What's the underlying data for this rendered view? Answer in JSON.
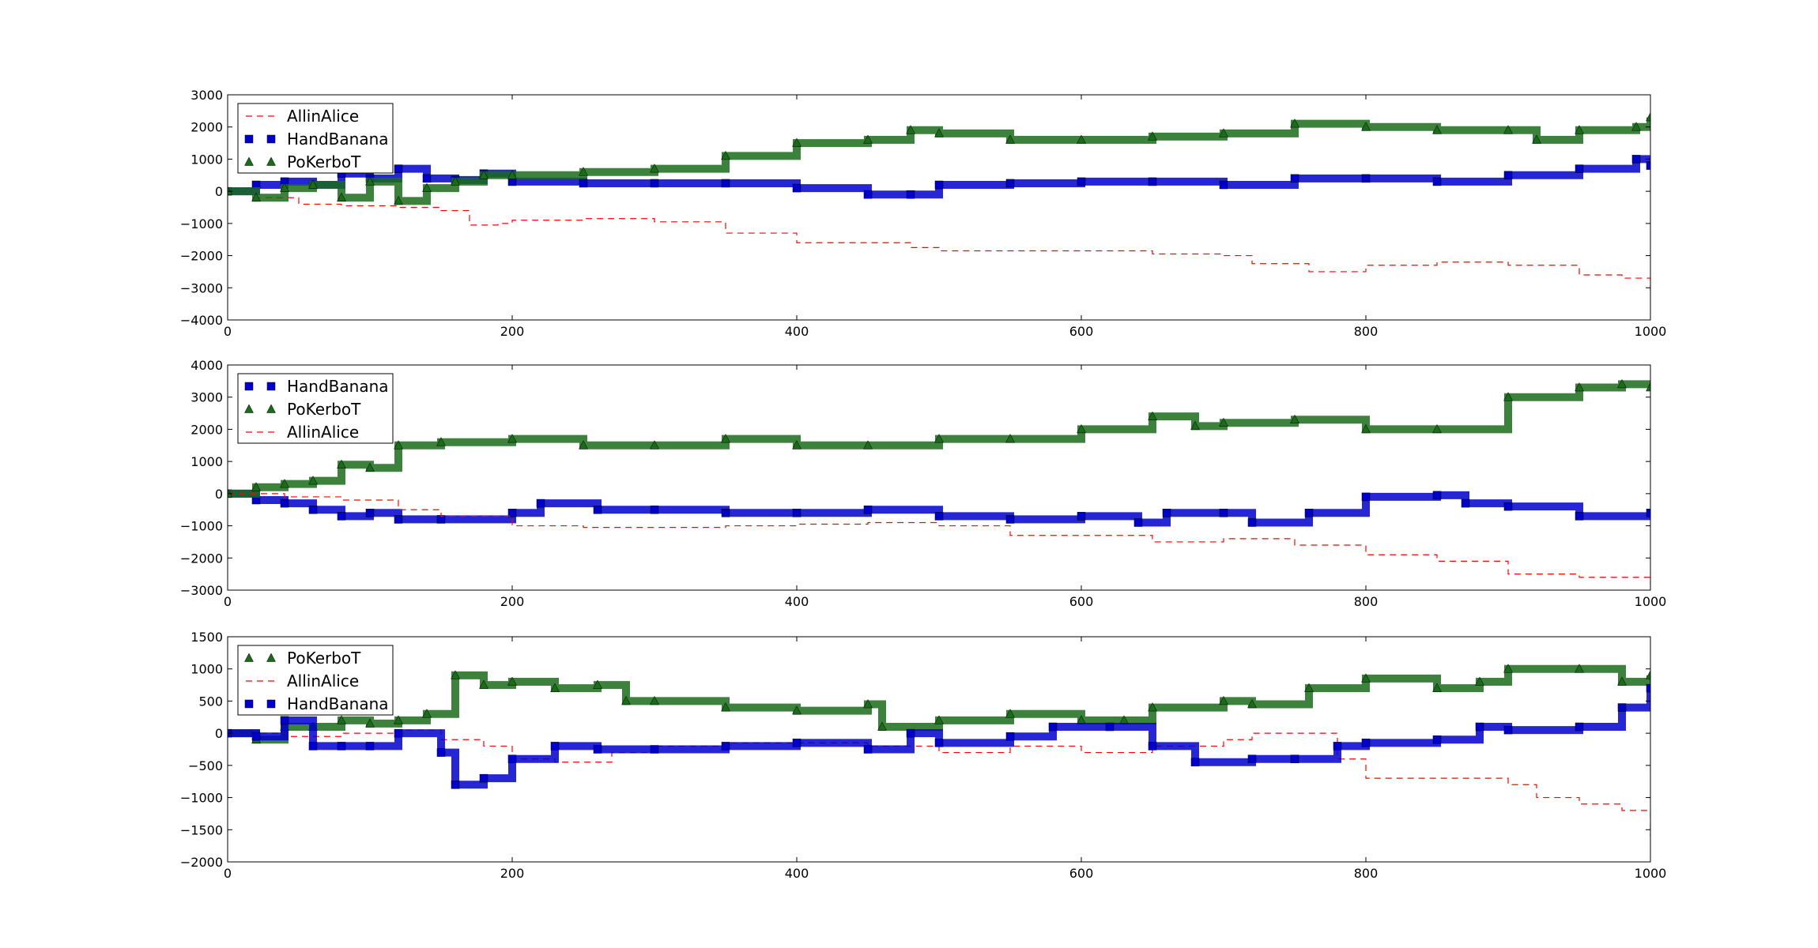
{
  "chart_data": [
    {
      "type": "line",
      "xlim": [
        0,
        1000
      ],
      "ylim": [
        -4000,
        3000
      ],
      "x_ticks": [
        0,
        200,
        400,
        600,
        800,
        1000
      ],
      "y_ticks": [
        -4000,
        -3000,
        -2000,
        -1000,
        0,
        1000,
        2000,
        3000
      ],
      "legend_position": "top-left",
      "grid": false,
      "series": [
        {
          "name": "AllinAlice",
          "marker": "dash",
          "color": "#ff0000",
          "x": [
            0,
            20,
            50,
            80,
            120,
            150,
            170,
            190,
            200,
            250,
            300,
            350,
            400,
            450,
            480,
            500,
            550,
            600,
            650,
            700,
            720,
            760,
            800,
            850,
            900,
            950,
            980,
            1000
          ],
          "y": [
            0,
            -200,
            -400,
            -450,
            -500,
            -600,
            -1050,
            -1000,
            -900,
            -850,
            -950,
            -1300,
            -1600,
            -1600,
            -1750,
            -1850,
            -1850,
            -1850,
            -1950,
            -2000,
            -2250,
            -2500,
            -2300,
            -2200,
            -2300,
            -2600,
            -2700,
            -3100
          ]
        },
        {
          "name": "HandBanana",
          "marker": "square",
          "color": "#0000cc",
          "x": [
            0,
            20,
            40,
            60,
            80,
            100,
            120,
            140,
            160,
            180,
            200,
            250,
            300,
            350,
            400,
            450,
            480,
            500,
            550,
            600,
            650,
            700,
            750,
            800,
            850,
            900,
            950,
            990,
            1000
          ],
          "y": [
            0,
            200,
            300,
            200,
            550,
            400,
            700,
            400,
            350,
            550,
            300,
            250,
            250,
            250,
            100,
            -100,
            -100,
            200,
            250,
            300,
            300,
            200,
            400,
            400,
            300,
            500,
            700,
            1000,
            800
          ]
        },
        {
          "name": "PoKerboT",
          "marker": "triangle",
          "color": "#1a6b1a",
          "x": [
            0,
            20,
            40,
            60,
            80,
            100,
            120,
            140,
            160,
            180,
            200,
            250,
            300,
            350,
            400,
            450,
            480,
            500,
            550,
            600,
            650,
            700,
            750,
            800,
            850,
            900,
            920,
            950,
            990,
            1000
          ],
          "y": [
            0,
            -200,
            100,
            200,
            -200,
            300,
            -300,
            100,
            300,
            500,
            500,
            600,
            700,
            1100,
            1500,
            1600,
            1900,
            1800,
            1600,
            1600,
            1700,
            1800,
            2100,
            2000,
            1900,
            1900,
            1600,
            1900,
            2000,
            2300
          ]
        }
      ]
    },
    {
      "type": "line",
      "xlim": [
        0,
        1000
      ],
      "ylim": [
        -3000,
        4000
      ],
      "x_ticks": [
        0,
        200,
        400,
        600,
        800,
        1000
      ],
      "y_ticks": [
        -3000,
        -2000,
        -1000,
        0,
        1000,
        2000,
        3000,
        4000
      ],
      "legend_position": "top-left",
      "grid": false,
      "series": [
        {
          "name": "HandBanana",
          "marker": "square",
          "color": "#0000cc",
          "x": [
            0,
            20,
            40,
            60,
            80,
            100,
            120,
            150,
            200,
            220,
            260,
            300,
            350,
            400,
            450,
            500,
            550,
            600,
            640,
            660,
            700,
            720,
            760,
            800,
            850,
            870,
            900,
            950,
            1000
          ],
          "y": [
            0,
            -200,
            -300,
            -500,
            -700,
            -600,
            -800,
            -800,
            -600,
            -300,
            -500,
            -500,
            -600,
            -600,
            -500,
            -700,
            -800,
            -700,
            -900,
            -600,
            -600,
            -900,
            -600,
            -100,
            -50,
            -300,
            -400,
            -700,
            -600
          ]
        },
        {
          "name": "PoKerboT",
          "marker": "triangle",
          "color": "#1a6b1a",
          "x": [
            0,
            20,
            40,
            60,
            80,
            100,
            120,
            150,
            200,
            250,
            300,
            350,
            400,
            450,
            500,
            550,
            600,
            650,
            680,
            700,
            750,
            800,
            850,
            900,
            950,
            980,
            1000
          ],
          "y": [
            0,
            200,
            300,
            400,
            900,
            800,
            1500,
            1600,
            1700,
            1500,
            1500,
            1700,
            1500,
            1500,
            1700,
            1700,
            2000,
            2400,
            2100,
            2200,
            2300,
            2000,
            2000,
            3000,
            3300,
            3400,
            3300
          ]
        },
        {
          "name": "AllinAlice",
          "marker": "dash",
          "color": "#ff0000",
          "x": [
            0,
            40,
            80,
            120,
            150,
            200,
            250,
            300,
            350,
            400,
            450,
            500,
            550,
            600,
            650,
            700,
            750,
            800,
            850,
            900,
            950,
            1000
          ],
          "y": [
            0,
            -100,
            -200,
            -500,
            -700,
            -1000,
            -1050,
            -1050,
            -1000,
            -950,
            -900,
            -1000,
            -1300,
            -1300,
            -1500,
            -1400,
            -1600,
            -1900,
            -2100,
            -2500,
            -2600,
            -2800
          ]
        }
      ]
    },
    {
      "type": "line",
      "xlim": [
        0,
        1000
      ],
      "ylim": [
        -2000,
        1500
      ],
      "x_ticks": [
        0,
        200,
        400,
        600,
        800,
        1000
      ],
      "y_ticks": [
        -2000,
        -1500,
        -1000,
        -500,
        0,
        500,
        1000,
        1500
      ],
      "legend_position": "top-left",
      "grid": false,
      "series": [
        {
          "name": "PoKerboT",
          "marker": "triangle",
          "color": "#1a6b1a",
          "x": [
            0,
            20,
            40,
            60,
            80,
            100,
            120,
            140,
            160,
            180,
            200,
            230,
            260,
            280,
            300,
            350,
            400,
            450,
            460,
            500,
            550,
            600,
            630,
            650,
            700,
            720,
            760,
            800,
            850,
            880,
            900,
            950,
            980,
            1000
          ],
          "y": [
            0,
            -100,
            100,
            100,
            200,
            150,
            200,
            300,
            900,
            750,
            800,
            700,
            750,
            500,
            500,
            400,
            350,
            450,
            100,
            200,
            300,
            200,
            200,
            400,
            500,
            450,
            700,
            850,
            700,
            800,
            1000,
            1000,
            800,
            900
          ]
        },
        {
          "name": "AllinAlice",
          "marker": "dash",
          "color": "#ff0000",
          "x": [
            0,
            40,
            80,
            120,
            150,
            180,
            200,
            230,
            270,
            300,
            350,
            400,
            450,
            500,
            550,
            600,
            650,
            700,
            720,
            750,
            780,
            800,
            850,
            900,
            920,
            950,
            980,
            1000
          ],
          "y": [
            0,
            -50,
            0,
            50,
            -100,
            -200,
            -400,
            -450,
            -300,
            -200,
            -150,
            -150,
            -200,
            -300,
            -200,
            -300,
            -200,
            -100,
            0,
            0,
            -400,
            -700,
            -700,
            -800,
            -1000,
            -1100,
            -1200,
            -1600
          ]
        },
        {
          "name": "HandBanana",
          "marker": "square",
          "color": "#0000cc",
          "x": [
            0,
            20,
            40,
            60,
            80,
            100,
            120,
            150,
            160,
            180,
            200,
            230,
            260,
            300,
            350,
            400,
            450,
            480,
            500,
            550,
            580,
            620,
            650,
            680,
            720,
            750,
            780,
            800,
            850,
            880,
            900,
            950,
            980,
            1000
          ],
          "y": [
            0,
            -50,
            200,
            -200,
            -200,
            -200,
            0,
            -300,
            -800,
            -700,
            -400,
            -200,
            -250,
            -250,
            -200,
            -150,
            -250,
            0,
            -150,
            -50,
            100,
            100,
            -200,
            -450,
            -400,
            -400,
            -200,
            -150,
            -100,
            100,
            50,
            100,
            400,
            700
          ]
        }
      ]
    }
  ]
}
